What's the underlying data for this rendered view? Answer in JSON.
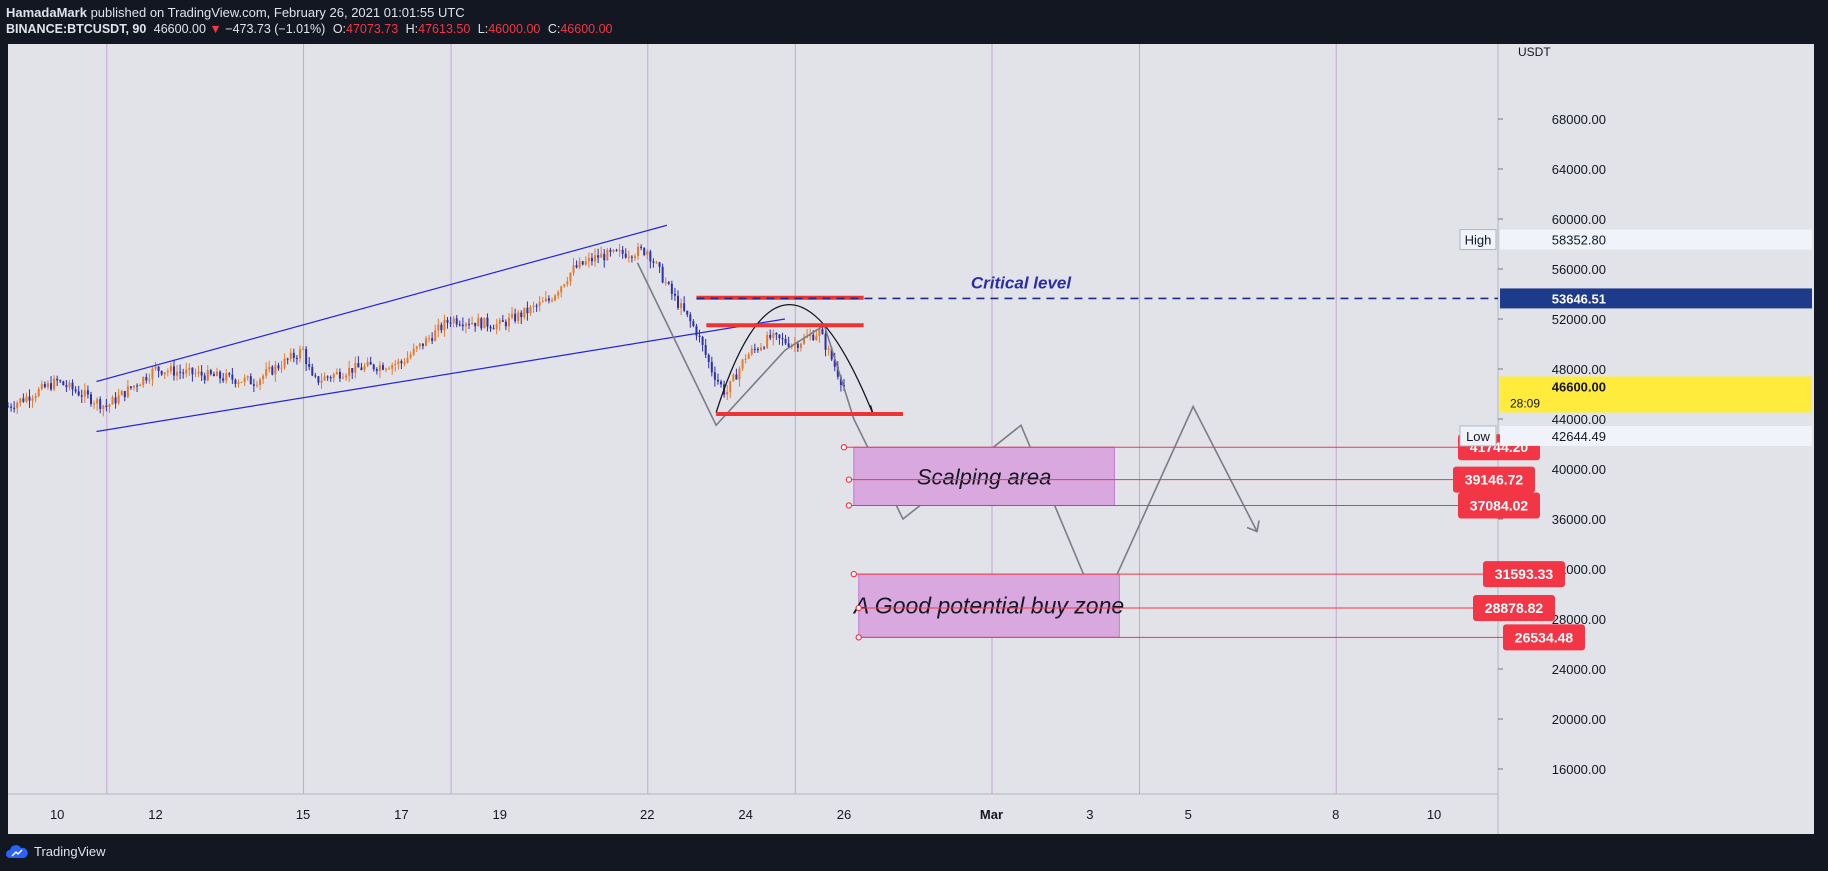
{
  "header": {
    "author": "HamadaMark",
    "published_text": "published on TradingView.com, February 26, 2021 01:01:55 UTC",
    "symbol_line": "BINANCE:BTCUSDT, 90",
    "last": "46600.00",
    "change": "−473.73 (−1.01%)",
    "o_label": "O:",
    "o_value": "47073.73",
    "h_label": "H:",
    "h_value": "47613.50",
    "l_label": "L:",
    "l_value": "46000.00",
    "c_label": "C:",
    "c_value": "46600.00"
  },
  "footer": {
    "brand": "TradingView"
  },
  "colors": {
    "up": "#e8792a",
    "down": "#2b2fb0",
    "trend": "#2424e0",
    "red": "#ee3333",
    "zone": "#d9a8df",
    "zone_border": "#c27ad0",
    "label_red": "#f23645",
    "critical": "#1e2a8c",
    "path": "#7a7d88",
    "current": "#ffeb3b"
  },
  "chart_data": {
    "type": "candlestick",
    "ylim": [
      14000,
      74000
    ],
    "y_ticks": [
      "68000.00",
      "64000.00",
      "60000.00",
      "56000.00",
      "52000.00",
      "48000.00",
      "44000.00",
      "40000.00",
      "36000.00",
      "32000.00",
      "28000.00",
      "24000.00",
      "20000.00",
      "16000.00"
    ],
    "y_tick_values": [
      68000,
      64000,
      60000,
      56000,
      52000,
      48000,
      44000,
      40000,
      36000,
      32000,
      28000,
      24000,
      20000,
      16000
    ],
    "currency_label": "USDT",
    "x_ticks": [
      "10",
      "12",
      "15",
      "17",
      "19",
      "22",
      "24",
      "26",
      "Mar",
      "3",
      "5",
      "8",
      "10"
    ],
    "x_tick_dates": [
      10,
      12,
      15,
      17,
      19,
      22,
      24,
      26,
      29,
      31,
      33,
      36,
      38
    ],
    "x_range_days": [
      9.0,
      39.3
    ],
    "ohlc_keypoints": [
      [
        9,
        45000
      ],
      [
        10,
        47000
      ],
      [
        11,
        45000
      ],
      [
        12,
        48000
      ],
      [
        13,
        47500
      ],
      [
        14,
        47000
      ],
      [
        15,
        49500
      ],
      [
        15.2,
        47000
      ],
      [
        16,
        48000
      ],
      [
        17,
        48500
      ],
      [
        18,
        52000
      ],
      [
        19,
        51500
      ],
      [
        20,
        53500
      ],
      [
        20.5,
        56000
      ],
      [
        21,
        57000
      ],
      [
        22,
        57500
      ],
      [
        22.5,
        54000
      ],
      [
        23,
        51000
      ],
      [
        23.3,
        48000
      ],
      [
        23.6,
        46000
      ],
      [
        24,
        49000
      ],
      [
        24.5,
        50500
      ],
      [
        25,
        50000
      ],
      [
        25.5,
        51000
      ],
      [
        26,
        46600
      ]
    ],
    "trendlines": [
      {
        "from": [
          10.8,
          47000
        ],
        "to": [
          22.4,
          59500
        ]
      },
      {
        "from": [
          10.8,
          43000
        ],
        "to": [
          24.8,
          52000
        ]
      }
    ],
    "red_levels": [
      {
        "x1": 23.0,
        "x2": 26.4,
        "y": 53700
      },
      {
        "x1": 23.2,
        "x2": 26.4,
        "y": 51500
      },
      {
        "x1": 23.4,
        "x2": 27.2,
        "y": 44400
      }
    ],
    "critical_level": {
      "value": 53646.51,
      "label": "Critical level",
      "price_label": "53646.51"
    },
    "high": {
      "label": "High",
      "value": "58352.80",
      "price": 58352.8
    },
    "low": {
      "label": "Low",
      "value": "42644.49",
      "price": 42644.49
    },
    "current": {
      "value": "46600.00",
      "price": 46600,
      "countdown": "28:09"
    },
    "zones": [
      {
        "name": "Scalping area",
        "y_top": 41744.2,
        "y_bottom": 37084.02,
        "x1": 26.2,
        "x2": 31.5
      },
      {
        "name": "A Good potential buy zone",
        "y_top": 31593.33,
        "y_bottom": 26534.48,
        "x1": 26.3,
        "x2": 31.6
      }
    ],
    "zone_labels": [
      {
        "value": "41744.20",
        "price": 41744.2,
        "x_from": 26.0
      },
      {
        "value": "39146.72",
        "price": 39146.72,
        "x_from": 26.1
      },
      {
        "value": "37084.02",
        "price": 37084.02,
        "x_from": 26.1
      },
      {
        "value": "31593.33",
        "price": 31593.33,
        "x_from": 26.2
      },
      {
        "value": "28878.82",
        "price": 28878.82,
        "x_from": 26.3
      },
      {
        "value": "26534.48",
        "price": 26534.48,
        "x_from": 26.3
      }
    ],
    "projection_path": [
      [
        21.8,
        56500
      ],
      [
        23.4,
        43500
      ],
      [
        24.8,
        49500
      ],
      [
        25.6,
        51500
      ],
      [
        26.2,
        44000
      ],
      [
        27.2,
        36000
      ],
      [
        29.6,
        43500
      ],
      [
        31.2,
        28500
      ],
      [
        33.1,
        45000
      ],
      [
        34.4,
        35000
      ]
    ],
    "arc": {
      "from": [
        23.4,
        44500
      ],
      "peak": [
        24.8,
        53100
      ],
      "to": [
        26.6,
        44300
      ]
    }
  }
}
